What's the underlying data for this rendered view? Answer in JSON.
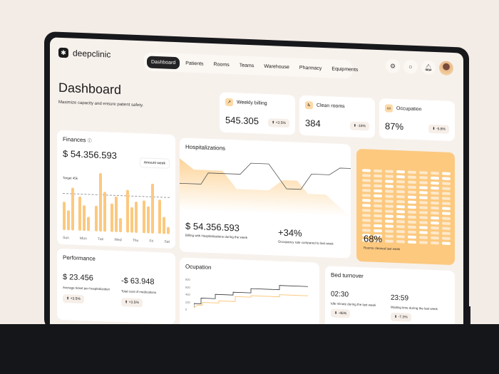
{
  "app": {
    "name": "deepclinic",
    "logo_icon": "asterisk-icon"
  },
  "nav": {
    "items": [
      "Dashboard",
      "Patients",
      "Rooms",
      "Teams",
      "Warehouse",
      "Pharmacy",
      "Equipments"
    ],
    "active": "Dashboard"
  },
  "header_icons": [
    "gear-icon",
    "chat-icon",
    "bell-icon",
    "avatar"
  ],
  "page": {
    "title": "Dashboard",
    "subtitle": "Maximize capacity and ensure patient safety."
  },
  "kpis": [
    {
      "label": "Weekly billing",
      "value": "545.305",
      "delta": "+3.5%",
      "dir": "up",
      "icon": "trend-icon"
    },
    {
      "label": "Clean rooms",
      "value": "384",
      "delta": "-16%",
      "dir": "down",
      "icon": "cleaning-icon"
    },
    {
      "label": "Occupation",
      "value": "87%",
      "delta": "-5.8%",
      "dir": "down",
      "icon": "bed-icon"
    }
  ],
  "finances": {
    "title": "Finances",
    "value": "$ 54.356.593",
    "range": "Amount week",
    "target": "Target 45k",
    "days": [
      "Sun",
      "Mon",
      "Tue",
      "Wed",
      "Thu",
      "Fri",
      "Sat"
    ],
    "bars": [
      [
        40,
        28,
        60
      ],
      [
        48,
        36,
        20
      ],
      [
        36,
        82,
        56
      ],
      [
        40,
        50,
        20
      ],
      [
        60,
        36,
        44
      ],
      [
        46,
        38,
        70
      ],
      [
        48,
        24,
        10
      ]
    ]
  },
  "hospitalizations": {
    "title": "Hospitalizations",
    "value": "$ 54.356.593",
    "value_caption": "Billing with Hospitalizations during the week",
    "rate": "+34%",
    "rate_caption": "Occupancy rate compared to last week"
  },
  "rooms_clean": {
    "value": "68%",
    "caption": "Rooms cleaned last week"
  },
  "performance": {
    "title": "Performance",
    "a_value": "$ 23.456",
    "a_caption": "Average ticket per hospitalization",
    "a_delta": "+3.5%",
    "b_value": "-$ 63.948",
    "b_caption": "Total cost of medications",
    "b_delta": "+3.5%"
  },
  "ocupation": {
    "title": "Ocupation",
    "y_ticks": [
      "800",
      "600",
      "400",
      "200",
      "0"
    ]
  },
  "bed_turnover": {
    "title": "Bed turnover",
    "a_value": "02:30",
    "a_caption": "Idle minute during the last week",
    "a_delta": "-46%",
    "b_value": "23:59",
    "b_caption": "Waiting time during the last week",
    "b_delta": "-7.3%"
  }
}
